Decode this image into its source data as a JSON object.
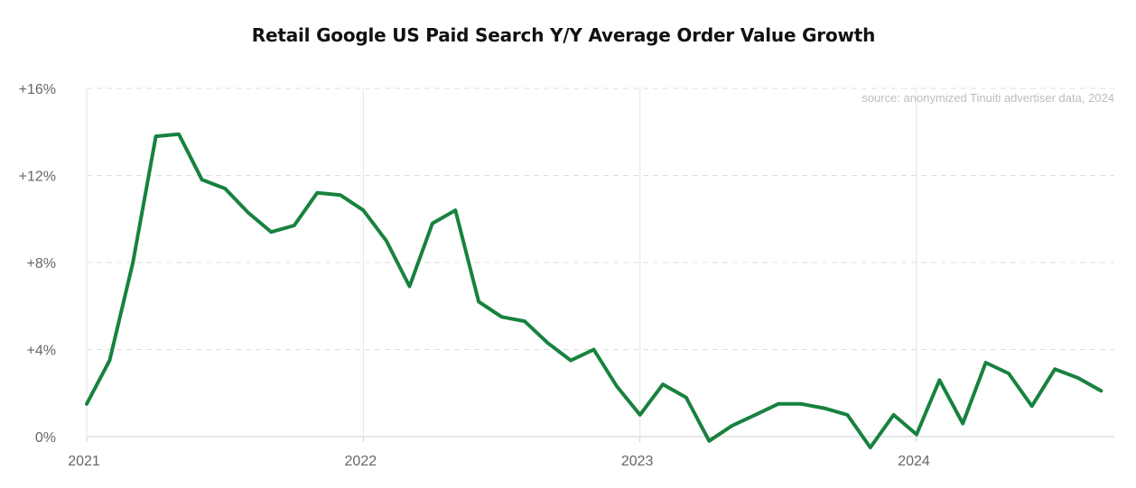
{
  "chart_data": {
    "type": "line",
    "title": "Retail Google US Paid Search Y/Y Average Order Value Growth",
    "source": "source: anonymized Tinuiti advertiser data, 2024",
    "xlabel": "",
    "ylabel": "",
    "ylim": [
      0,
      16
    ],
    "xlim": [
      2021.0,
      2024.667
    ],
    "y_ticks": [
      {
        "value": 16,
        "label": "+16%"
      },
      {
        "value": 12,
        "label": "+12%"
      },
      {
        "value": 8,
        "label": "+8%"
      },
      {
        "value": 4,
        "label": "+4%"
      },
      {
        "value": 0,
        "label": "0%"
      }
    ],
    "x_ticks": [
      {
        "value": 2021,
        "label": "2021"
      },
      {
        "value": 2022,
        "label": "2022"
      },
      {
        "value": 2023,
        "label": "2023"
      },
      {
        "value": 2024,
        "label": "2024"
      }
    ],
    "grid": {
      "horizontal": "dashed",
      "vertical": "solid"
    },
    "line_color": "#17823f",
    "series": [
      {
        "name": "Y/Y Average Order Value Growth (%)",
        "x": [
          2021.0,
          2021.083,
          2021.167,
          2021.25,
          2021.333,
          2021.417,
          2021.5,
          2021.583,
          2021.667,
          2021.75,
          2021.833,
          2021.917,
          2022.0,
          2022.083,
          2022.167,
          2022.25,
          2022.333,
          2022.417,
          2022.5,
          2022.583,
          2022.667,
          2022.75,
          2022.833,
          2022.917,
          2023.0,
          2023.083,
          2023.167,
          2023.25,
          2023.333,
          2023.417,
          2023.5,
          2023.583,
          2023.667,
          2023.75,
          2023.833,
          2023.917,
          2024.0,
          2024.083,
          2024.167,
          2024.25,
          2024.333,
          2024.417,
          2024.5,
          2024.583,
          2024.667
        ],
        "values": [
          1.5,
          3.5,
          8.0,
          13.8,
          13.9,
          11.8,
          11.4,
          10.3,
          9.4,
          9.7,
          11.2,
          11.1,
          10.4,
          9.0,
          6.9,
          9.8,
          10.4,
          6.2,
          5.5,
          5.3,
          4.3,
          3.5,
          4.0,
          2.3,
          1.0,
          2.4,
          1.8,
          -0.2,
          0.5,
          1.0,
          1.5,
          1.5,
          1.3,
          1.0,
          -0.5,
          1.0,
          0.1,
          2.6,
          0.6,
          3.4,
          2.9,
          1.4,
          3.1,
          2.7,
          2.1
        ]
      }
    ]
  }
}
